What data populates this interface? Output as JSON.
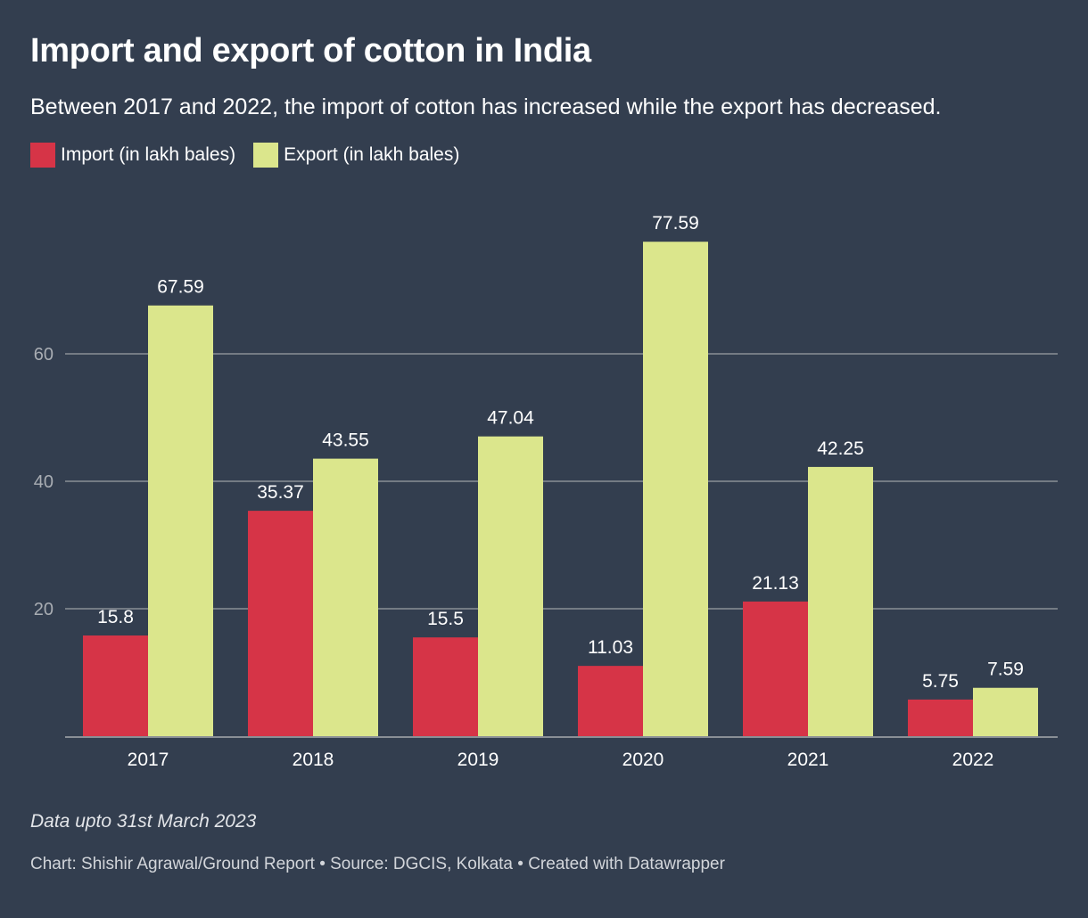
{
  "header": {
    "title": "Import and export of cotton in India",
    "subtitle": "Between 2017 and 2022, the import of cotton has increased while the export has decreased."
  },
  "footer": {
    "note": "Data upto 31st March 2023",
    "credits": "Chart: Shishir Agrawal/Ground Report • Source: DGCIS, Kolkata • Created with Datawrapper"
  },
  "colors": {
    "background": "#333e4f",
    "import": "#d63447",
    "export": "#dbe68c",
    "grid": "#8a8f96",
    "tick_label": "#a9adb3",
    "label": "#ffffff"
  },
  "chart_data": {
    "type": "bar",
    "title": "Import and export of cotton in India",
    "subtitle": "Between 2017 and 2022, the import of cotton has increased while the export has decreased.",
    "xlabel": "",
    "ylabel": "",
    "categories": [
      "2017",
      "2018",
      "2019",
      "2020",
      "2021",
      "2022"
    ],
    "series": [
      {
        "name": "Import (in lakh bales)",
        "color": "#d63447",
        "values": [
          15.8,
          35.37,
          15.5,
          11.03,
          21.13,
          5.75
        ],
        "labels": [
          "15.8",
          "35.37",
          "15.5",
          "11.03",
          "21.13",
          "5.75"
        ]
      },
      {
        "name": "Export (in lakh bales)",
        "color": "#dbe68c",
        "values": [
          67.59,
          43.55,
          47.04,
          77.59,
          42.25,
          7.59
        ],
        "labels": [
          "67.59",
          "43.55",
          "47.04",
          "77.59",
          "42.25",
          "7.59"
        ]
      }
    ],
    "yticks": [
      20,
      40,
      60
    ],
    "ytick_labels": [
      "20",
      "40",
      "60"
    ],
    "ylim": [
      0,
      80
    ],
    "grid": true,
    "legend_position": "top-left",
    "data_labels": true
  }
}
